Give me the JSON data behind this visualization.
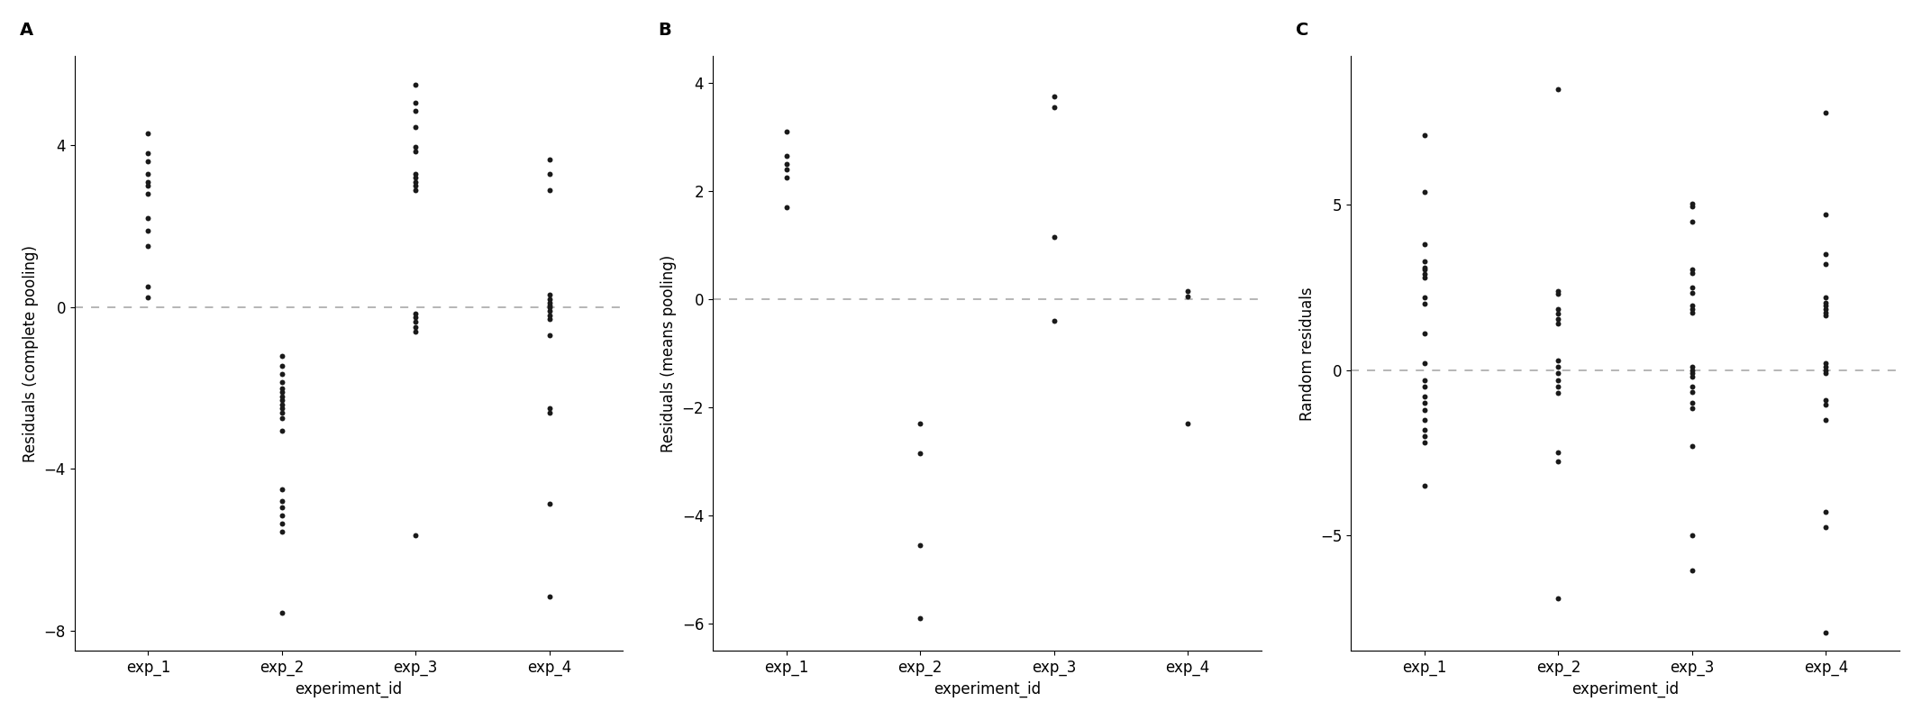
{
  "panel_A": {
    "title": "A",
    "ylabel": "Residuals (complete pooling)",
    "xlabel": "experiment_id",
    "ylim": [
      -8.5,
      6.2
    ],
    "yticks": [
      -8,
      -4,
      0,
      4
    ],
    "categories": [
      "exp_1",
      "exp_2",
      "exp_3",
      "exp_4"
    ],
    "data": {
      "exp_1": [
        4.3,
        3.8,
        3.6,
        3.3,
        3.1,
        3.0,
        2.8,
        2.2,
        1.9,
        1.5,
        0.5,
        0.25
      ],
      "exp_2": [
        -1.2,
        -1.45,
        -1.65,
        -1.85,
        -2.0,
        -2.1,
        -2.2,
        -2.3,
        -2.4,
        -2.5,
        -2.6,
        -2.75,
        -3.05,
        -4.5,
        -4.8,
        -4.95,
        -5.15,
        -5.35,
        -5.55,
        -7.55
      ],
      "exp_3": [
        5.5,
        5.05,
        4.85,
        4.45,
        3.95,
        3.85,
        3.3,
        3.2,
        3.1,
        3.0,
        2.9,
        -0.15,
        -0.25,
        -0.35,
        -0.5,
        -0.6,
        -5.65
      ],
      "exp_4": [
        3.65,
        3.3,
        2.9,
        0.3,
        0.2,
        0.1,
        0.05,
        0.0,
        -0.1,
        -0.2,
        -0.3,
        -0.7,
        -2.5,
        -2.6,
        -4.85,
        -7.15
      ]
    }
  },
  "panel_B": {
    "title": "B",
    "ylabel": "Residuals (means pooling)",
    "xlabel": "experiment_id",
    "ylim": [
      -6.5,
      4.5
    ],
    "yticks": [
      -6,
      -4,
      -2,
      0,
      2,
      4
    ],
    "categories": [
      "exp_1",
      "exp_2",
      "exp_3",
      "exp_4"
    ],
    "data": {
      "exp_1": [
        3.1,
        2.65,
        2.5,
        2.4,
        2.25,
        1.7
      ],
      "exp_2": [
        -2.3,
        -2.85,
        -4.55,
        -5.9
      ],
      "exp_3": [
        3.75,
        3.55,
        1.15,
        -0.4
      ],
      "exp_4": [
        0.15,
        0.05,
        -2.3
      ]
    }
  },
  "panel_C": {
    "title": "C",
    "ylabel": "Random residuals",
    "xlabel": "experiment_id",
    "ylim": [
      -8.5,
      9.5
    ],
    "yticks": [
      -5,
      0,
      5
    ],
    "categories": [
      "exp_1",
      "exp_2",
      "exp_3",
      "exp_4"
    ],
    "data": {
      "exp_1": [
        7.1,
        5.4,
        3.8,
        3.3,
        3.1,
        3.05,
        2.9,
        2.8,
        2.2,
        2.0,
        1.1,
        0.2,
        -0.3,
        -0.5,
        -0.8,
        -1.0,
        -1.2,
        -1.5,
        -1.8,
        -2.0,
        -2.2,
        -3.5
      ],
      "exp_2": [
        8.5,
        2.4,
        2.3,
        1.85,
        1.7,
        1.55,
        1.4,
        0.3,
        0.1,
        -0.1,
        -0.3,
        -0.5,
        -0.7,
        -2.5,
        -2.75,
        -6.9
      ],
      "exp_3": [
        5.05,
        4.95,
        4.5,
        3.05,
        2.95,
        2.5,
        2.35,
        1.95,
        1.85,
        1.75,
        0.1,
        0.0,
        -0.1,
        -0.2,
        -0.5,
        -0.65,
        -1.0,
        -1.15,
        -2.3,
        -5.0,
        -6.05
      ],
      "exp_4": [
        7.8,
        4.7,
        3.5,
        3.2,
        2.2,
        2.05,
        1.95,
        1.85,
        1.75,
        1.65,
        0.2,
        0.1,
        0.0,
        -0.1,
        -0.9,
        -1.05,
        -1.5,
        -4.3,
        -4.75,
        -7.95
      ]
    }
  },
  "dot_size": 18,
  "dot_color": "#1a1a1a",
  "dashed_color": "#b0b0b0",
  "background_color": "#ffffff",
  "font_size": 12,
  "label_fontsize": 12,
  "title_fontsize": 14,
  "title_fontweight": "bold"
}
